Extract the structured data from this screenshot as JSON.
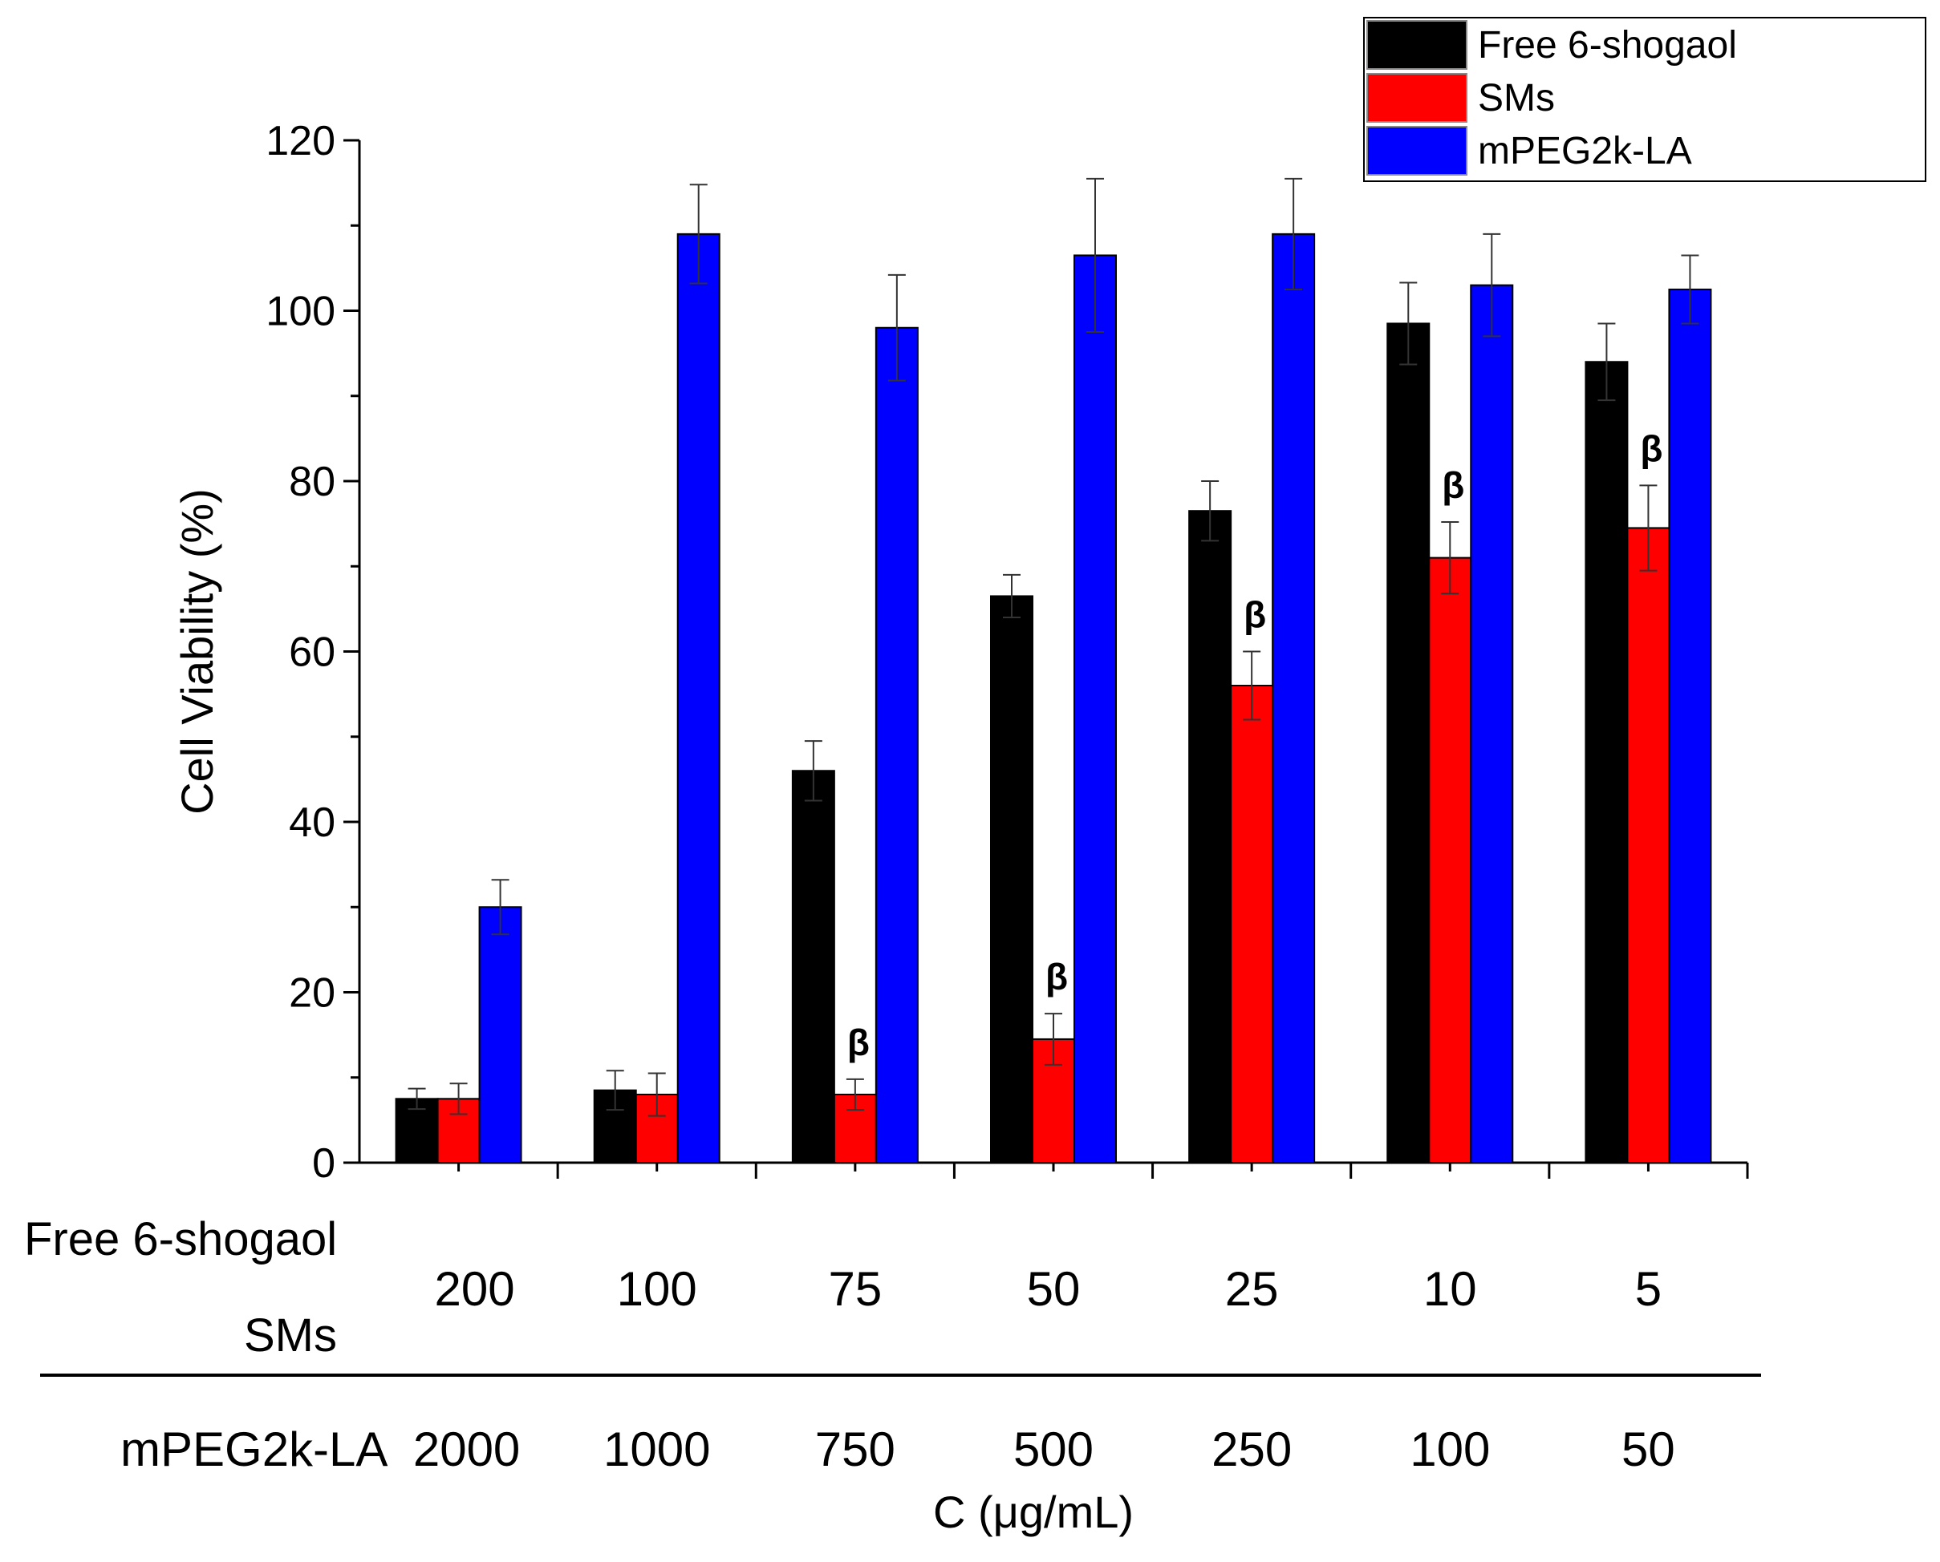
{
  "chart_data": {
    "type": "bar",
    "xlabel": "C (μg/mL)",
    "ylabel": "Cell Viability (%)",
    "ylim": [
      0,
      120
    ],
    "yticks": [
      0,
      20,
      40,
      60,
      80,
      100,
      120
    ],
    "categories": [
      "200",
      "100",
      "75",
      "50",
      "25",
      "10",
      "5"
    ],
    "series": [
      {
        "name": "Free 6-shogaol",
        "color": "#000000",
        "values": [
          7.5,
          8.5,
          46,
          66.5,
          76.5,
          98.5,
          94
        ],
        "errors": [
          1.2,
          2.3,
          3.5,
          2.5,
          3.5,
          4.8,
          4.5
        ]
      },
      {
        "name": "SMs",
        "color": "#ff0000",
        "values": [
          7.5,
          8,
          8,
          14.5,
          56,
          71,
          74.5
        ],
        "errors": [
          1.8,
          2.5,
          1.8,
          3,
          4,
          4.2,
          5
        ],
        "significance": [
          "",
          "",
          "β",
          "β",
          "β",
          "β",
          "β"
        ]
      },
      {
        "name": "mPEG2k-LA",
        "color": "#0000ff",
        "values": [
          30,
          109,
          98,
          106.5,
          109,
          103,
          102.5
        ],
        "errors": [
          3.2,
          5.8,
          6.2,
          9,
          6.5,
          6,
          4
        ]
      }
    ],
    "concentration_rows": {
      "free_and_sms_label": [
        "Free 6-shogaol",
        "SMs"
      ],
      "free_and_sms_values": [
        "200",
        "100",
        "75",
        "50",
        "25",
        "10",
        "5"
      ],
      "mpeg_label": "mPEG2k-LA",
      "mpeg_values": [
        "2000",
        "1000",
        "750",
        "500",
        "250",
        "100",
        "50"
      ]
    },
    "legend": {
      "position": "top-right",
      "entries": [
        "Free 6-shogaol",
        "SMs",
        "mPEG2k-LA"
      ]
    }
  }
}
